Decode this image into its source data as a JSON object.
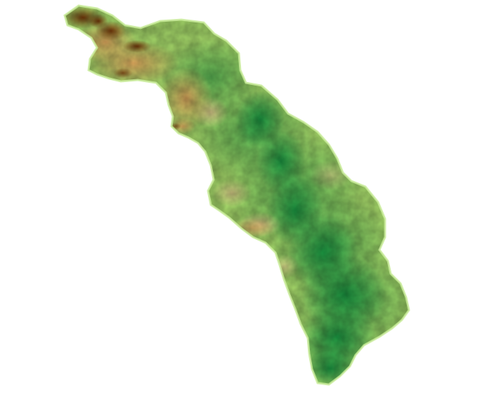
{
  "map": {
    "type": "elevation-raster",
    "background_color": "#ffffff",
    "color_ramp": {
      "very_low": "#1a9641",
      "low": "#52b151",
      "low_mid": "#a6d96a",
      "mid": "#e6f5a8",
      "mid_high": "#fdd49e",
      "high": "#e0a55c",
      "very_high": "#b8631c",
      "peak": "#7a3b0a"
    }
  }
}
